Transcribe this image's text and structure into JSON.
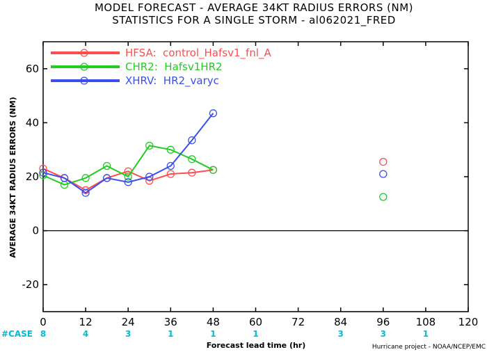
{
  "chart_data": {
    "type": "line",
    "title": "MODEL FORECAST - AVERAGE 34KT RADIUS ERRORS (NM)",
    "subtitle": "STATISTICS FOR A SINGLE STORM - al062021_FRED",
    "xlabel": "Forecast lead time (hr)",
    "ylabel": "AVERAGE 34KT RADIUS ERRORS (NM)",
    "xlim": [
      0,
      120
    ],
    "ylim": [
      -30,
      70
    ],
    "xticks": [
      0,
      12,
      24,
      36,
      48,
      60,
      72,
      84,
      96,
      108,
      120
    ],
    "yticks": [
      -20,
      0,
      20,
      40,
      60
    ],
    "legend_position": "top-left",
    "credit": "Hurricane project - NOAA/NCEP/EMC",
    "case_label": "#CASE",
    "cases": [
      {
        "x": 0,
        "n": "8"
      },
      {
        "x": 12,
        "n": "4"
      },
      {
        "x": 24,
        "n": "3"
      },
      {
        "x": 36,
        "n": "1"
      },
      {
        "x": 48,
        "n": "1"
      },
      {
        "x": 60,
        "n": "1"
      },
      {
        "x": 84,
        "n": "3"
      },
      {
        "x": 96,
        "n": "3"
      },
      {
        "x": 108,
        "n": "1"
      }
    ],
    "series": [
      {
        "name": "HFSA:  control_Hafsv1_fnl_A",
        "color": "#ff4d4d",
        "x": [
          0,
          6,
          12,
          18,
          24,
          30,
          36,
          42,
          48
        ],
        "y": [
          23,
          19.5,
          15,
          19.5,
          22,
          18.5,
          21,
          21.5,
          22.5
        ],
        "extra": [
          {
            "x": 96,
            "y": 25.5
          }
        ]
      },
      {
        "name": "CHR2:  Hafsv1HR2",
        "color": "#22cc22",
        "x": [
          0,
          6,
          12,
          18,
          24,
          30,
          36,
          42,
          48
        ],
        "y": [
          20.5,
          17,
          19.5,
          24,
          20,
          31.5,
          30,
          26.5,
          22.5
        ],
        "extra": [
          {
            "x": 96,
            "y": 12.5
          }
        ]
      },
      {
        "name": "XHRV:  HR2_varyc",
        "color": "#3a4ef0",
        "x": [
          0,
          6,
          12,
          18,
          24,
          30,
          36,
          42,
          48
        ],
        "y": [
          21.5,
          19.5,
          14,
          19.5,
          18,
          20,
          24,
          33.5,
          43.5
        ],
        "extra": [
          {
            "x": 96,
            "y": 21
          }
        ]
      }
    ]
  }
}
